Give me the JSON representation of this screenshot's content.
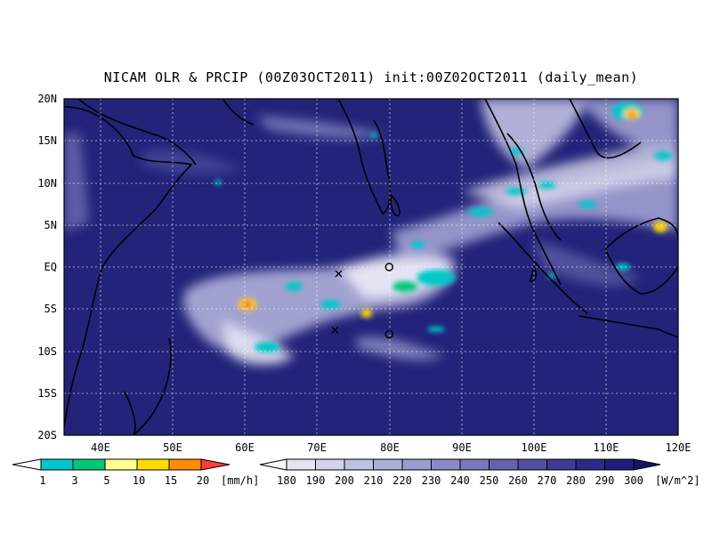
{
  "title": "NICAM OLR & PRCIP (00Z03OCT2011) init:00Z02OCT2011 (daily_mean)",
  "map": {
    "lat_labels": [
      "20N",
      "15N",
      "10N",
      "5N",
      "EQ",
      "5S",
      "10S",
      "15S",
      "20S"
    ],
    "lon_labels": [
      "40E",
      "50E",
      "60E",
      "70E",
      "80E",
      "90E",
      "100E",
      "110E",
      "120E"
    ],
    "lat_range": [
      -20,
      20
    ],
    "lon_range": [
      35,
      120
    ],
    "ocean_color": "#23237a",
    "markers": [
      {
        "symbol": "x",
        "lon": 73,
        "lat": -0.8
      },
      {
        "symbol": "x",
        "lon": 72.5,
        "lat": -7.5
      },
      {
        "symbol": "o",
        "lon": 80,
        "lat": 0
      },
      {
        "symbol": "o",
        "lon": 80,
        "lat": -8
      }
    ]
  },
  "precip_legend": {
    "values": [
      "1",
      "3",
      "5",
      "10",
      "15",
      "20"
    ],
    "unit": "[mm/h]",
    "colors": [
      "#00c8c8",
      "#00c878",
      "#ffff96",
      "#ffdc00",
      "#ff8c00",
      "#ff3c3c"
    ]
  },
  "olr_legend": {
    "values": [
      "180",
      "190",
      "200",
      "210",
      "220",
      "230",
      "240",
      "250",
      "260",
      "270",
      "280",
      "290",
      "300"
    ],
    "unit": "[W/m^2]",
    "colors": [
      "#f5f5fa",
      "#e4e4f2",
      "#d2d2ea",
      "#c0c0e2",
      "#aeaed8",
      "#9c9cce",
      "#8a8ac4",
      "#7878ba",
      "#6464ae",
      "#5050a0",
      "#3c3c94",
      "#2a2a88",
      "#1e1e7c",
      "#14146e"
    ]
  }
}
